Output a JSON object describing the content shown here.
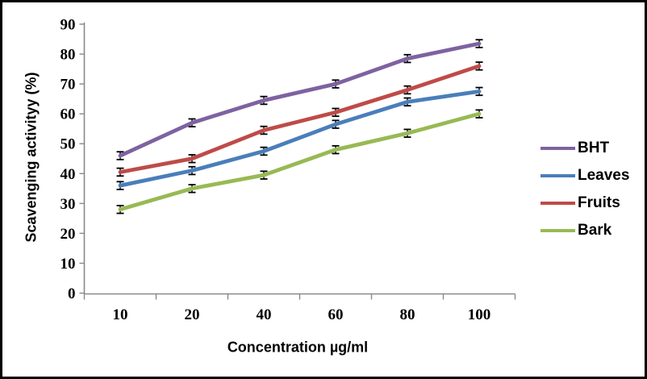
{
  "figure": {
    "background_color": "#ffffff",
    "border_color": "#000000",
    "axis_color": "#898989",
    "error_bar_color": "#000000"
  },
  "chart_data": {
    "type": "line",
    "title": "",
    "xlabel": "Concentration µg/ml",
    "ylabel": "Scavenging activityy (%)",
    "categories": [
      "10",
      "20",
      "40",
      "60",
      "80",
      "100"
    ],
    "series": [
      {
        "name": "BHT",
        "color": "#7E62A1",
        "values": [
          46,
          57,
          64.5,
          70,
          78.5,
          83.5
        ]
      },
      {
        "name": "Leaves",
        "color": "#4A7EBB",
        "values": [
          36,
          41,
          47.5,
          56.5,
          64,
          67.5
        ]
      },
      {
        "name": "Fruits",
        "color": "#BE4B48",
        "values": [
          40.5,
          45,
          54.5,
          60.5,
          68,
          76
        ]
      },
      {
        "name": "Bark",
        "color": "#98B954",
        "values": [
          28,
          35,
          39.5,
          48,
          53.5,
          60
        ]
      }
    ],
    "yticks": [
      0,
      10,
      20,
      30,
      40,
      50,
      60,
      70,
      80,
      90
    ],
    "ylim": [
      0,
      90
    ],
    "error_bar": 1.3,
    "grid": false,
    "legend_position": "right",
    "legend_entries": [
      "BHT",
      "Leaves",
      "Fruits",
      "Bark"
    ]
  }
}
